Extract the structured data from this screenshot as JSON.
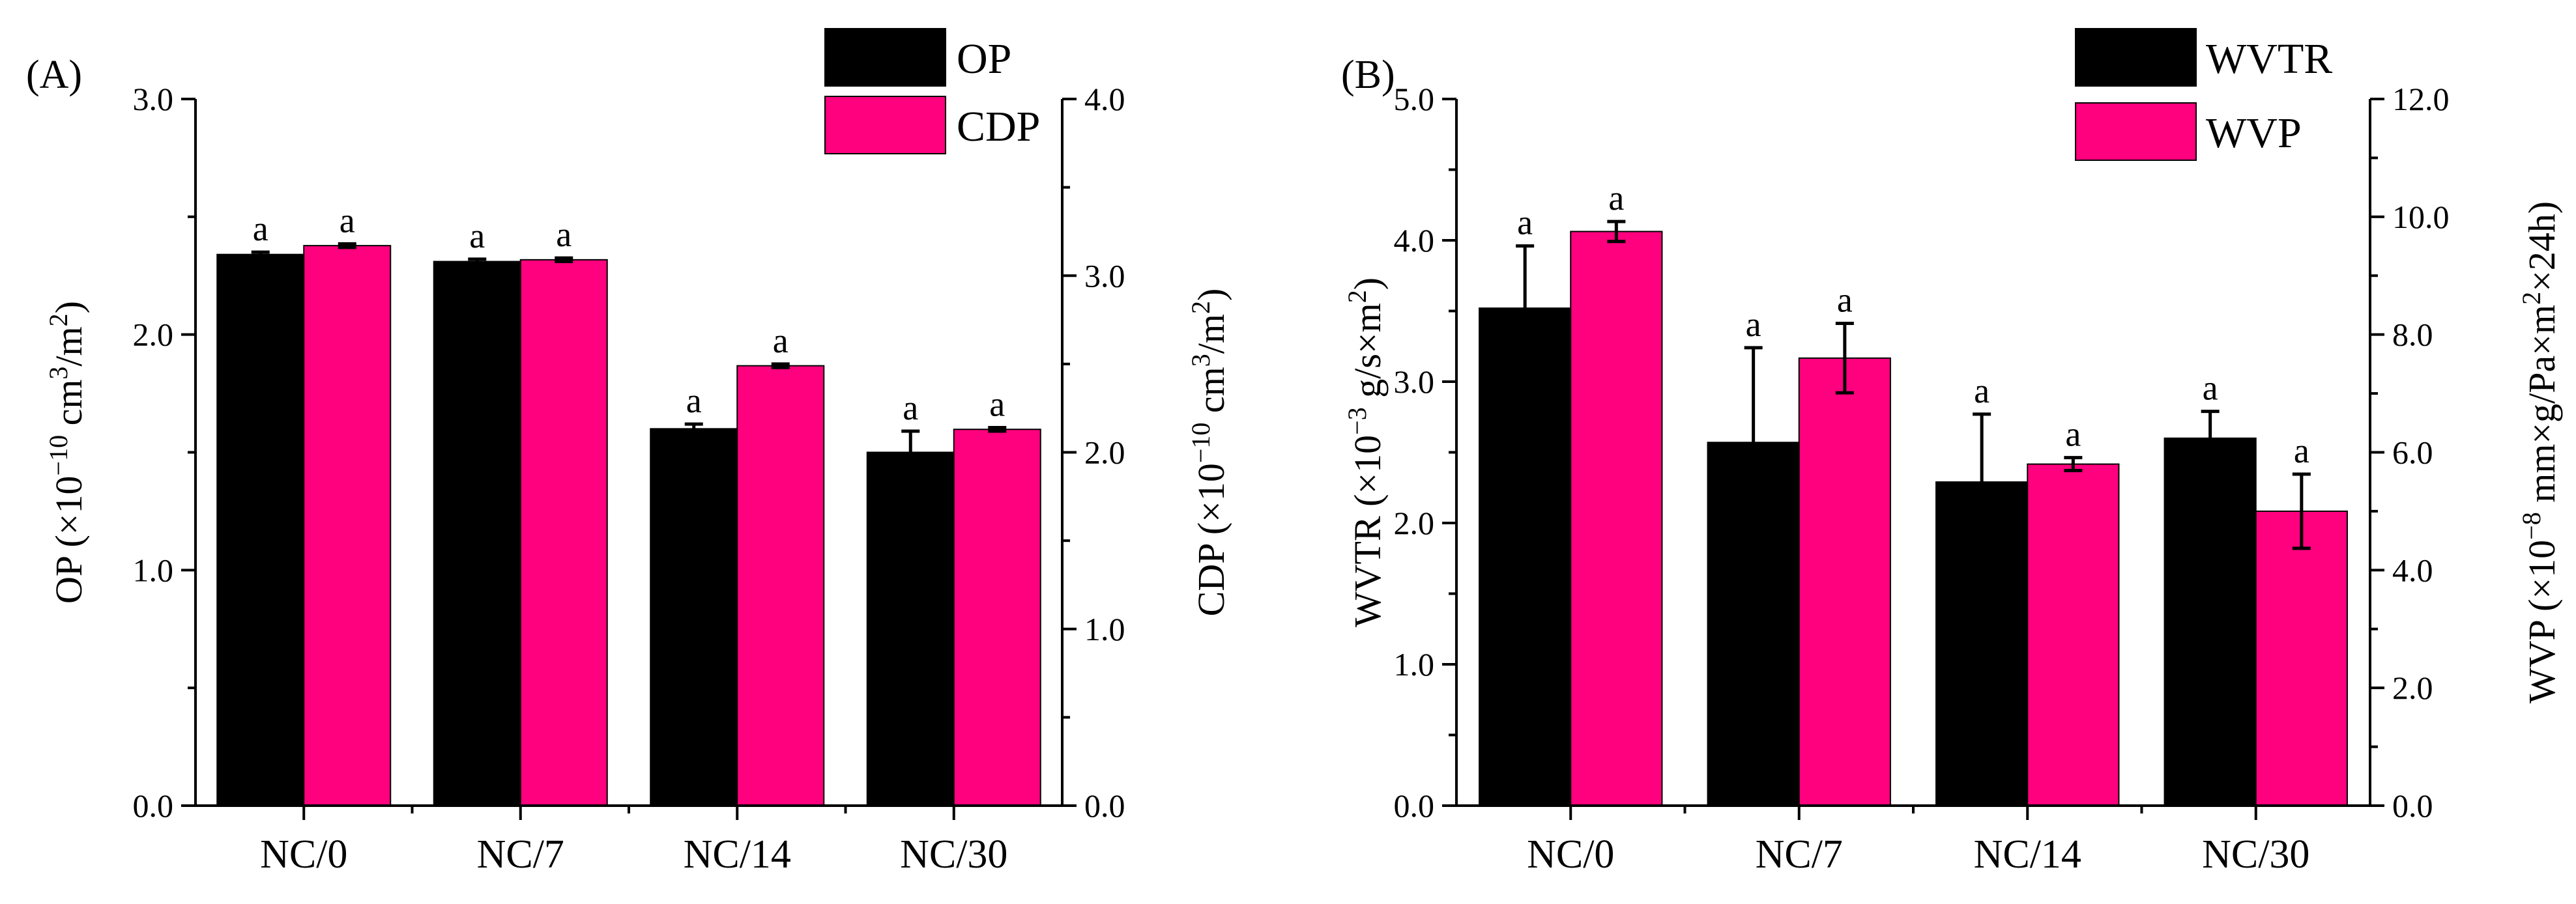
{
  "chart_data": [
    {
      "panel_label": "(A)",
      "type": "bar",
      "categories": [
        "NC/0",
        "NC/7",
        "NC/14",
        "NC/30"
      ],
      "series": [
        {
          "name": "OP",
          "axis": "left",
          "color": "#000000",
          "values": [
            2.34,
            2.31,
            1.6,
            1.5
          ],
          "errors": [
            0.01,
            0.01,
            0.02,
            0.09
          ],
          "labels": [
            "a",
            "a",
            "a",
            "a"
          ]
        },
        {
          "name": "CDP",
          "axis": "right",
          "color": "#ff007f",
          "values": [
            3.17,
            3.09,
            2.49,
            2.13
          ],
          "errors": [
            0.01,
            0.01,
            0.01,
            0.01
          ],
          "labels": [
            "a",
            "a",
            "a",
            "a"
          ]
        }
      ],
      "left_axis": {
        "title_main": "OP (×10",
        "title_sup1": "−10",
        "title_mid": " cm",
        "title_sup2": "3",
        "title_mid2": "/m",
        "title_sup3": "2",
        "title_end": ")",
        "ylim": [
          0,
          3.0
        ],
        "ticks": [
          "0.0",
          "1.0",
          "2.0",
          "3.0"
        ]
      },
      "right_axis": {
        "title_main": "CDP (×10",
        "title_sup1": "−10",
        "title_mid": " cm",
        "title_sup2": "3",
        "title_mid2": "/m",
        "title_sup3": "2",
        "title_end": ")",
        "ylim": [
          0,
          4.0
        ],
        "ticks": [
          "0.0",
          "1.0",
          "2.0",
          "3.0",
          "4.0"
        ]
      },
      "legend": {
        "location": "top-right",
        "entries": [
          "OP",
          "CDP"
        ]
      },
      "grid": false
    },
    {
      "panel_label": "(B)",
      "type": "bar",
      "categories": [
        "NC/0",
        "NC/7",
        "NC/14",
        "NC/30"
      ],
      "series": [
        {
          "name": "WVTR",
          "axis": "left",
          "color": "#000000",
          "values": [
            3.52,
            2.57,
            2.29,
            2.6
          ],
          "errors": [
            0.44,
            0.67,
            0.48,
            0.19
          ],
          "labels": [
            "a",
            "a",
            "a",
            "a"
          ]
        },
        {
          "name": "WVP",
          "axis": "right",
          "color": "#ff007f",
          "values": [
            9.75,
            7.6,
            5.8,
            5.0
          ],
          "errors": [
            0.17,
            0.59,
            0.11,
            0.63
          ],
          "labels": [
            "a",
            "a",
            "a",
            "a"
          ]
        }
      ],
      "left_axis": {
        "title_main": "WVTR (×10",
        "title_sup1": "−3",
        "title_mid": " g/s×m",
        "title_sup2": "2",
        "title_mid2": "",
        "title_sup3": "",
        "title_end": ")",
        "ylim": [
          0,
          5.0
        ],
        "ticks": [
          "0.0",
          "1.0",
          "2.0",
          "3.0",
          "4.0",
          "5.0"
        ]
      },
      "right_axis": {
        "title_main": "WVP (×10",
        "title_sup1": "−8",
        "title_mid": " mm×g/Pa×m",
        "title_sup2": "2",
        "title_mid2": "×24h",
        "title_sup3": "",
        "title_end": ")",
        "ylim": [
          0,
          12.0
        ],
        "ticks": [
          "0.0",
          "2.0",
          "4.0",
          "6.0",
          "8.0",
          "10.0",
          "12.0"
        ]
      },
      "legend": {
        "location": "top-right",
        "entries": [
          "WVTR",
          "WVP"
        ]
      },
      "grid": false
    }
  ]
}
